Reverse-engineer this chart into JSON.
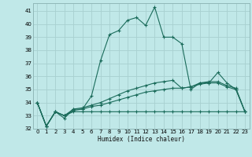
{
  "xlabel": "Humidex (Indice chaleur)",
  "background_color": "#c0e8e8",
  "grid_color": "#a8d0d0",
  "line_color": "#1a6b5a",
  "xlim": [
    -0.5,
    23.5
  ],
  "ylim": [
    32,
    41.6
  ],
  "yticks": [
    32,
    33,
    34,
    35,
    36,
    37,
    38,
    39,
    40,
    41
  ],
  "xticks": [
    0,
    1,
    2,
    3,
    4,
    5,
    6,
    7,
    8,
    9,
    10,
    11,
    12,
    13,
    14,
    15,
    16,
    17,
    18,
    19,
    20,
    21,
    22,
    23
  ],
  "series": [
    {
      "x": [
        0,
        1,
        2,
        3,
        4,
        5,
        6,
        7,
        8,
        9,
        10,
        11,
        12,
        13,
        14,
        15,
        16,
        17,
        18,
        19,
        20,
        21,
        22,
        23
      ],
      "y": [
        34.0,
        32.2,
        33.3,
        32.8,
        33.5,
        33.5,
        34.5,
        37.2,
        39.2,
        39.5,
        40.3,
        40.5,
        39.9,
        41.3,
        39.0,
        39.0,
        38.5,
        35.0,
        35.5,
        35.5,
        36.3,
        35.5,
        35.0,
        33.3
      ]
    },
    {
      "x": [
        0,
        1,
        2,
        3,
        4,
        5,
        6,
        7,
        8,
        9,
        10,
        11,
        12,
        13,
        14,
        15,
        16,
        17,
        18,
        19,
        20,
        21,
        22,
        23
      ],
      "y": [
        34.0,
        32.2,
        33.3,
        33.0,
        33.5,
        33.6,
        33.8,
        34.0,
        34.3,
        34.6,
        34.9,
        35.1,
        35.3,
        35.5,
        35.6,
        35.7,
        35.1,
        35.2,
        35.5,
        35.6,
        35.6,
        35.3,
        35.1,
        33.3
      ]
    },
    {
      "x": [
        0,
        1,
        2,
        3,
        4,
        5,
        6,
        7,
        8,
        9,
        10,
        11,
        12,
        13,
        14,
        15,
        16,
        17,
        18,
        19,
        20,
        21,
        22,
        23
      ],
      "y": [
        34.0,
        32.2,
        33.3,
        33.0,
        33.4,
        33.5,
        33.7,
        33.8,
        34.0,
        34.2,
        34.4,
        34.6,
        34.8,
        34.9,
        35.0,
        35.1,
        35.1,
        35.2,
        35.4,
        35.5,
        35.5,
        35.2,
        35.0,
        33.3
      ]
    },
    {
      "x": [
        0,
        1,
        2,
        3,
        4,
        5,
        6,
        7,
        8,
        9,
        10,
        11,
        12,
        13,
        14,
        15,
        16,
        17,
        18,
        19,
        20,
        21,
        22,
        23
      ],
      "y": [
        34.0,
        32.2,
        33.3,
        33.0,
        33.3,
        33.3,
        33.3,
        33.3,
        33.3,
        33.3,
        33.3,
        33.3,
        33.3,
        33.3,
        33.3,
        33.3,
        33.3,
        33.3,
        33.3,
        33.3,
        33.3,
        33.3,
        33.3,
        33.3
      ]
    }
  ]
}
